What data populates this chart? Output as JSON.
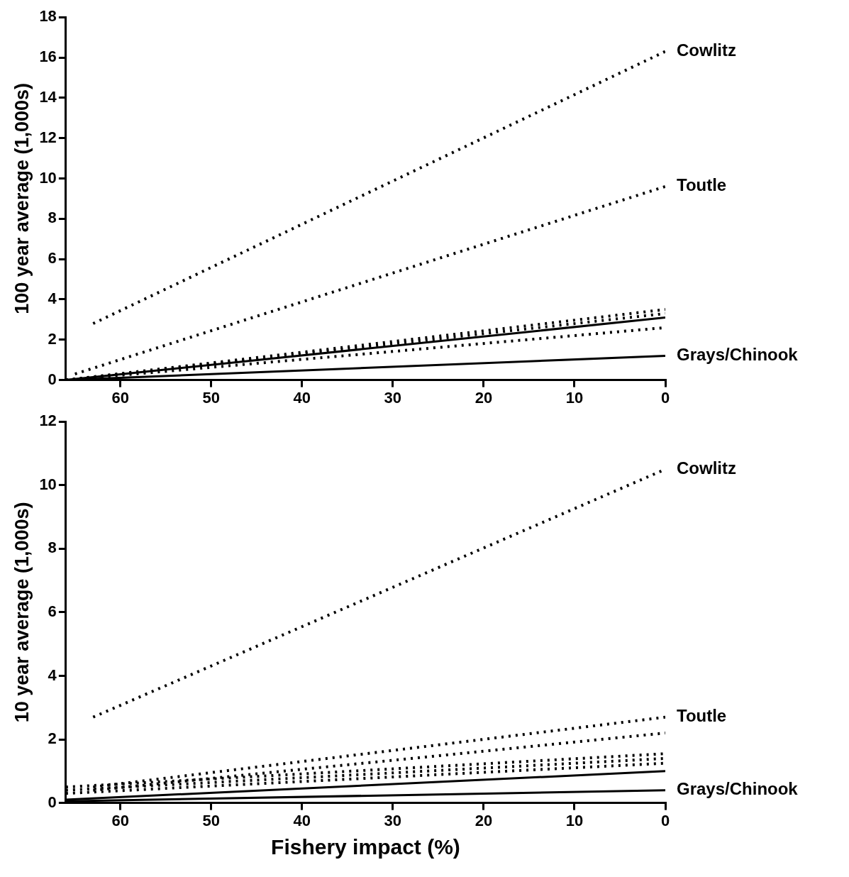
{
  "chart_data": [
    {
      "type": "line",
      "ylabel": "100 year average (1,000s)",
      "xlim": [
        66,
        0
      ],
      "xticks": [
        60,
        50,
        40,
        30,
        20,
        10,
        0
      ],
      "ylim": [
        0,
        18
      ],
      "yticks": [
        0,
        2,
        4,
        6,
        8,
        10,
        12,
        14,
        16,
        18
      ],
      "series": [
        {
          "name": "Cowlitz",
          "color": "#000000",
          "line_style": "dotted",
          "x": [
            63,
            0
          ],
          "values": [
            2.8,
            16.3
          ]
        },
        {
          "name": "Toutle",
          "color": "#000000",
          "line_style": "dotted",
          "x": [
            65,
            0
          ],
          "values": [
            0.3,
            9.6
          ]
        },
        {
          "color": "#000000",
          "line_style": "dotted",
          "x": [
            66,
            0
          ],
          "values": [
            0,
            3.5
          ]
        },
        {
          "color": "#000000",
          "line_style": "dotted",
          "x": [
            66,
            0
          ],
          "values": [
            0,
            3.3
          ]
        },
        {
          "color": "#000000",
          "line_style": "dotted",
          "x": [
            66,
            0
          ],
          "values": [
            0,
            2.6
          ]
        },
        {
          "color": "#000000",
          "line_style": "solid",
          "x": [
            66,
            0
          ],
          "values": [
            0,
            3.1
          ]
        },
        {
          "name": "Grays/Chinook",
          "color": "#000000",
          "line_style": "solid",
          "x": [
            66,
            0
          ],
          "values": [
            0,
            1.2
          ]
        }
      ]
    },
    {
      "type": "line",
      "xlabel": "Fishery impact (%)",
      "ylabel": "10 year average (1,000s)",
      "xlim": [
        66,
        0
      ],
      "xticks": [
        60,
        50,
        40,
        30,
        20,
        10,
        0
      ],
      "ylim": [
        0,
        12
      ],
      "yticks": [
        0,
        2,
        4,
        6,
        8,
        10,
        12
      ],
      "series": [
        {
          "name": "Cowlitz",
          "color": "#000000",
          "line_style": "dotted",
          "x": [
            63,
            0
          ],
          "values": [
            2.7,
            10.5
          ]
        },
        {
          "name": "Toutle",
          "color": "#000000",
          "line_style": "dotted",
          "x": [
            63,
            0
          ],
          "values": [
            0.5,
            2.7
          ]
        },
        {
          "color": "#000000",
          "line_style": "dotted",
          "x": [
            63,
            0
          ],
          "values": [
            0.4,
            2.2
          ]
        },
        {
          "color": "#000000",
          "line_style": "dotted",
          "x": [
            66,
            0
          ],
          "values": [
            0.5,
            1.55
          ]
        },
        {
          "color": "#000000",
          "line_style": "dotted",
          "x": [
            66,
            0
          ],
          "values": [
            0.4,
            1.4
          ]
        },
        {
          "color": "#000000",
          "line_style": "dotted",
          "x": [
            66,
            0
          ],
          "values": [
            0.3,
            1.25
          ]
        },
        {
          "color": "#000000",
          "line_style": "solid",
          "x": [
            66,
            0
          ],
          "values": [
            0.1,
            1.0
          ]
        },
        {
          "name": "Grays/Chinook",
          "color": "#000000",
          "line_style": "solid",
          "x": [
            66,
            0
          ],
          "values": [
            0.05,
            0.4
          ]
        }
      ]
    }
  ]
}
